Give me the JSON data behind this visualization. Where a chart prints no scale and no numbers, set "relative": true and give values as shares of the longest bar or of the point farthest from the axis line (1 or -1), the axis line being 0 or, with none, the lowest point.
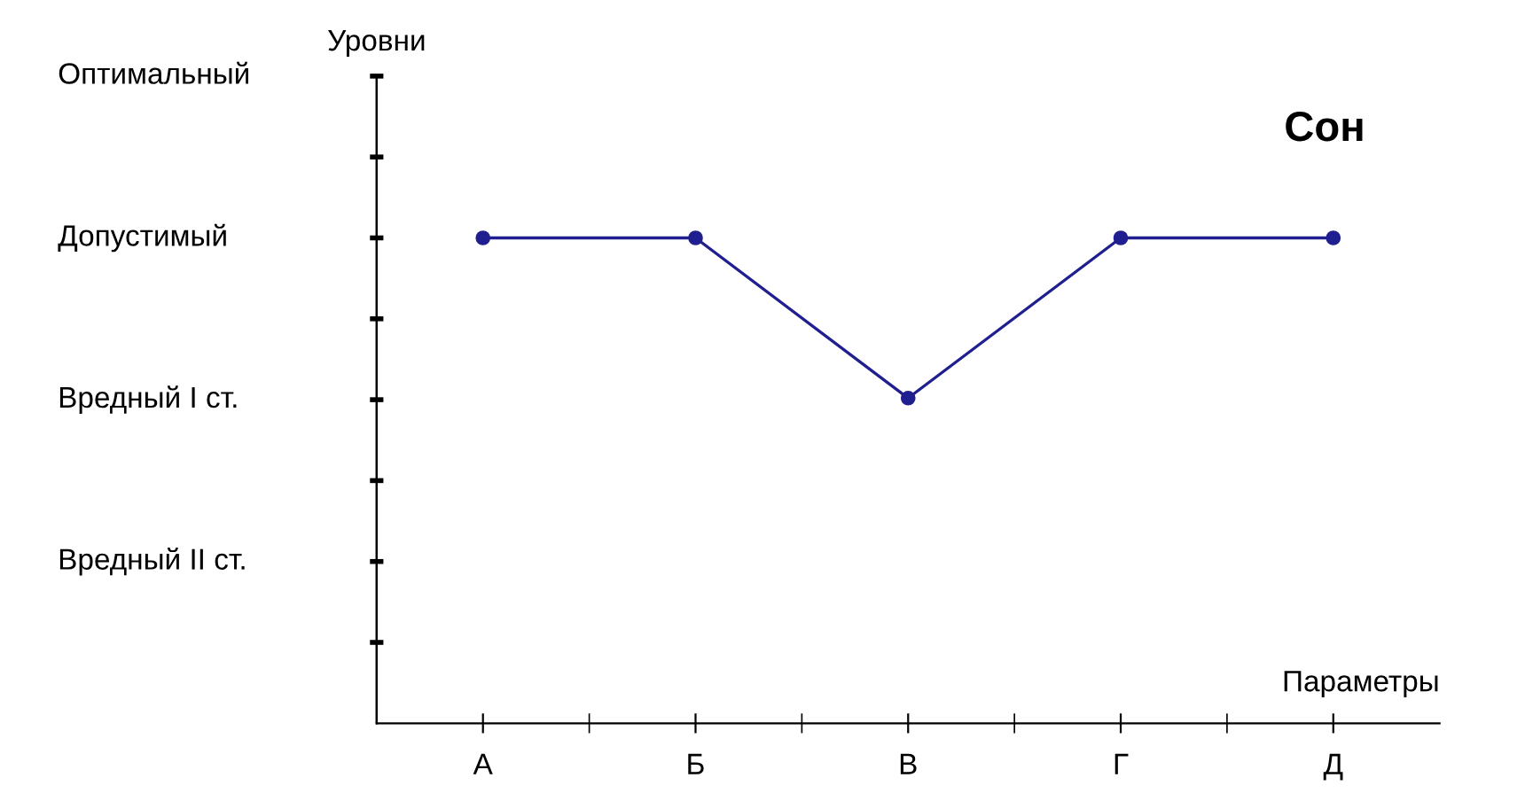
{
  "chart_data": {
    "type": "line",
    "title": "Сон",
    "xlabel": "Параметры",
    "relative": true,
    "categories": [
      "А",
      "Б",
      "В",
      "Г",
      "Д"
    ],
    "series": [
      {
        "color": "#1f1f8f",
        "values": [
          1,
          1,
          0.67,
          1,
          1
        ]
      }
    ],
    "annotations": [
      "Уровни",
      "Оптимальный",
      "Допустимый",
      "Вредный I ст.",
      "Вредный II ст."
    ],
    "marker": "circle",
    "line_style": "solid",
    "grid": false,
    "legend": false
  }
}
